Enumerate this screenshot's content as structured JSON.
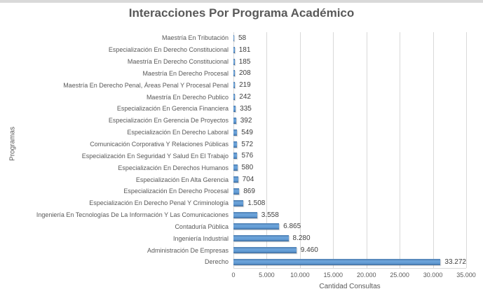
{
  "page": {
    "background": "#ffffff",
    "top_strip_color": "#d9d9d9",
    "text_color": "#595959"
  },
  "chart_data": {
    "type": "bar",
    "orientation": "horizontal",
    "title": "Interacciones Por Programa Académico",
    "xlabel": "Cantidad Consultas",
    "ylabel": "Programas",
    "xlim": [
      0,
      35000
    ],
    "xtick_labels": [
      "0",
      "5.000",
      "10.000",
      "15.000",
      "20.000",
      "25.000",
      "30.000",
      "35.000"
    ],
    "grid": true,
    "legend": false,
    "bar_color": "#5e97d0",
    "gridline_color": "#d9d9d9",
    "categories": [
      "Maestría En Tributación",
      "Especialización En Derecho Constitucional",
      "Maestría En Derecho Constitucional",
      "Maestría En Derecho Procesal",
      "Maestría En Derecho Penal, Áreas Penal Y Procesal Penal",
      "Maestría En Derecho Publico",
      "Especialización En Gerencia Financiera",
      "Especialización En Gerencia De Proyectos",
      "Especialización En Derecho Laboral",
      "Comunicación Corporativa Y Relaciones Públicas",
      "Especialización En Seguridad Y Salud En El Trabajo",
      "Especialización En Derechos Humanos",
      "Especialización En Alta Gerencia",
      "Especialización En Derecho Procesal",
      "Especialización En Derecho Penal Y Criminología",
      "Ingeniería En Tecnologías De La Información Y Las Comunicaciones",
      "Contaduría Pública",
      "Ingeniería Industrial",
      "Administración De Empresas",
      "Derecho"
    ],
    "values": [
      58,
      181,
      185,
      208,
      219,
      242,
      335,
      392,
      549,
      572,
      576,
      580,
      704,
      869,
      1508,
      3558,
      6865,
      8280,
      9460,
      33272
    ],
    "value_labels": [
      "58",
      "181",
      "185",
      "208",
      "219",
      "242",
      "335",
      "392",
      "549",
      "572",
      "576",
      "580",
      "704",
      "869",
      "1.508",
      "3.558",
      "6.865",
      "8.280",
      "9.460",
      "33.272"
    ]
  }
}
